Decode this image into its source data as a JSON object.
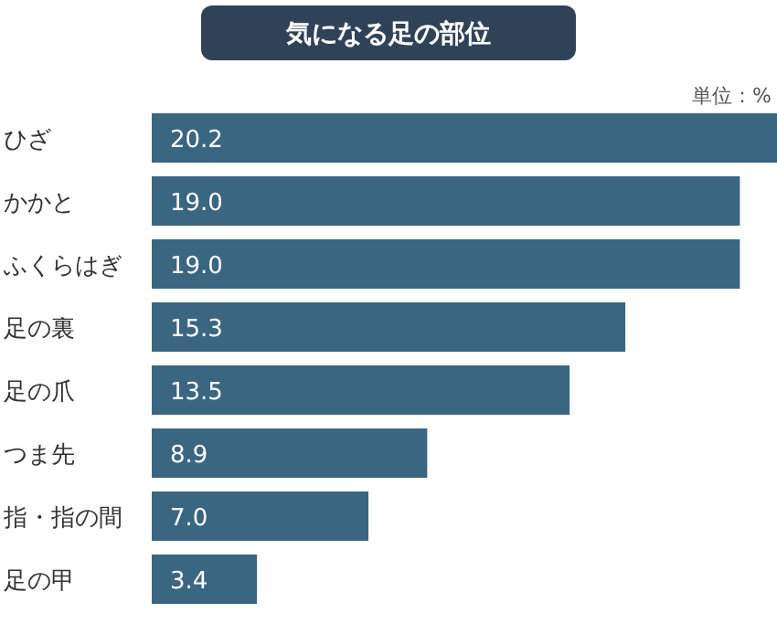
{
  "chart_data": {
    "type": "bar",
    "orientation": "horizontal",
    "title": "気になる足の部位",
    "annotations": [
      "単位：%"
    ],
    "categories": [
      "ひざ",
      "かかと",
      "ふくらはぎ",
      "足の裏",
      "足の爪",
      "つま先",
      "指・指の間",
      "足の甲"
    ],
    "values": [
      20.2,
      19.0,
      19.0,
      15.3,
      13.5,
      8.9,
      7.0,
      3.4
    ],
    "value_labels": [
      "20.2",
      "19.0",
      "19.0",
      "15.3",
      "13.5",
      "8.9",
      "7.0",
      "3.4"
    ],
    "color": "#3b6682"
  }
}
